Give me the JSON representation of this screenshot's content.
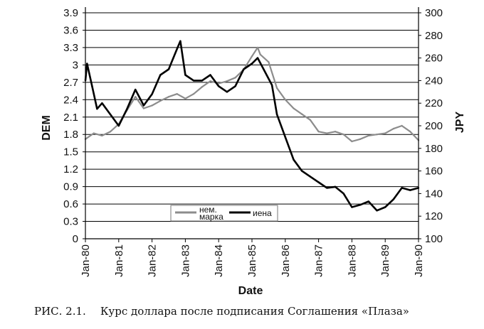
{
  "chart_data": {
    "type": "line",
    "xlabel": "Date",
    "ylabel_left": "DEM",
    "ylabel_right": "JPY",
    "x_ticks": [
      "Jan-80",
      "Jan-81",
      "Jan-82",
      "Jan-83",
      "Jan-84",
      "Jan-85",
      "Jan-86",
      "Jan-87",
      "Jan-88",
      "Jan-89",
      "Jan-90"
    ],
    "y_left_ticks": [
      "0",
      "0.3",
      "0.6",
      "0.9",
      "1.2",
      "1.5",
      "1.8",
      "2.1",
      "2.4",
      "2.7",
      "3",
      "3.3",
      "3.6",
      "3.9"
    ],
    "y_right_ticks": [
      "100",
      "120",
      "140",
      "160",
      "180",
      "200",
      "220",
      "240",
      "260",
      "280",
      "300"
    ],
    "ylim_left": [
      0,
      3.9
    ],
    "ylim_right": [
      100,
      300
    ],
    "xlim": [
      1980.0,
      1990.0
    ],
    "grid": "horizontal",
    "legend_position": "lower-center",
    "series": [
      {
        "name": "нем. марка",
        "axis": "left",
        "color": "#8c8c8c",
        "x": [
          1980.0,
          1980.25,
          1980.5,
          1980.75,
          1981.0,
          1981.25,
          1981.5,
          1981.75,
          1982.0,
          1982.25,
          1982.5,
          1982.75,
          1983.0,
          1983.25,
          1983.5,
          1983.75,
          1984.0,
          1984.25,
          1984.5,
          1984.75,
          1985.0,
          1985.17,
          1985.25,
          1985.5,
          1985.75,
          1986.0,
          1986.25,
          1986.5,
          1986.75,
          1987.0,
          1987.25,
          1987.5,
          1987.75,
          1988.0,
          1988.25,
          1988.5,
          1988.75,
          1989.0,
          1989.25,
          1989.5,
          1989.75,
          1990.0
        ],
        "values": [
          1.72,
          1.82,
          1.78,
          1.85,
          1.98,
          2.22,
          2.45,
          2.25,
          2.3,
          2.38,
          2.45,
          2.5,
          2.42,
          2.5,
          2.62,
          2.72,
          2.68,
          2.72,
          2.78,
          2.92,
          3.15,
          3.3,
          3.18,
          3.05,
          2.6,
          2.4,
          2.25,
          2.15,
          2.05,
          1.85,
          1.82,
          1.85,
          1.8,
          1.68,
          1.72,
          1.78,
          1.8,
          1.82,
          1.9,
          1.95,
          1.85,
          1.7
        ]
      },
      {
        "name": "иена",
        "axis": "right",
        "color": "#000000",
        "x": [
          1980.0,
          1980.05,
          1980.2,
          1980.35,
          1980.5,
          1980.75,
          1981.0,
          1981.25,
          1981.5,
          1981.75,
          1982.0,
          1982.25,
          1982.5,
          1982.75,
          1982.85,
          1983.0,
          1983.25,
          1983.5,
          1983.75,
          1984.0,
          1984.25,
          1984.5,
          1984.75,
          1985.0,
          1985.17,
          1985.35,
          1985.6,
          1985.75,
          1986.0,
          1986.25,
          1986.5,
          1986.75,
          1987.0,
          1987.25,
          1987.5,
          1987.75,
          1988.0,
          1988.25,
          1988.5,
          1988.75,
          1989.0,
          1989.25,
          1989.5,
          1989.75,
          1990.0
        ],
        "values": [
          240,
          255,
          235,
          215,
          220,
          210,
          200,
          215,
          232,
          218,
          228,
          245,
          250,
          268,
          275,
          245,
          240,
          240,
          245,
          235,
          230,
          235,
          250,
          255,
          260,
          250,
          236,
          210,
          190,
          170,
          160,
          155,
          150,
          145,
          146,
          140,
          128,
          130,
          133,
          125,
          128,
          135,
          145,
          143,
          145
        ]
      }
    ]
  },
  "caption": {
    "number": "РИС. 2.1.",
    "text": "Курс доллара после подписания Соглашения «Плаза»"
  }
}
